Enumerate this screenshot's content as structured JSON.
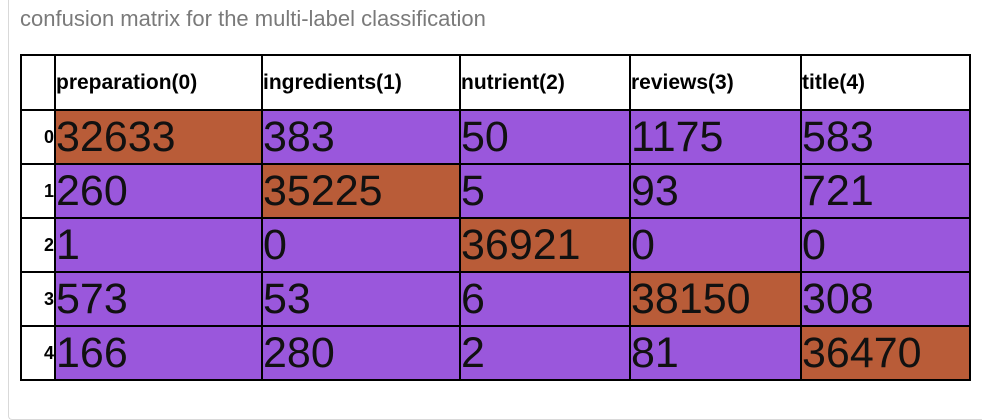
{
  "caption": "confusion matrix for the multi-label classification",
  "colors": {
    "off_diagonal": "#9a57dc",
    "diagonal": "#b95c38"
  },
  "chart_data": {
    "type": "table",
    "title": "",
    "columns": [
      "preparation(0)",
      "ingredients(1)",
      "nutrient(2)",
      "reviews(3)",
      "title(4)"
    ],
    "row_labels": [
      "0",
      "1",
      "2",
      "3",
      "4"
    ],
    "values": [
      [
        32633,
        383,
        50,
        1175,
        583
      ],
      [
        260,
        35225,
        5,
        93,
        721
      ],
      [
        1,
        0,
        36921,
        0,
        0
      ],
      [
        573,
        53,
        6,
        38150,
        308
      ],
      [
        166,
        280,
        2,
        81,
        36470
      ]
    ]
  }
}
